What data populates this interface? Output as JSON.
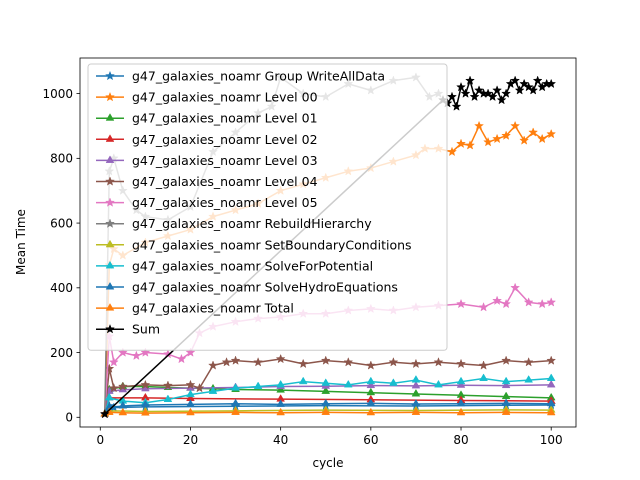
{
  "chart_data": {
    "type": "line",
    "title": "",
    "xlabel": "cycle",
    "ylabel": "Mean Time",
    "xlim": [
      -4.5,
      105.5
    ],
    "ylim": [
      -30,
      1110
    ],
    "xticks": [
      0,
      20,
      40,
      60,
      80,
      100
    ],
    "yticks": [
      0,
      200,
      400,
      600,
      800,
      1000
    ],
    "legend_position": "upper-left",
    "grid": false,
    "series": [
      {
        "name": "g47_galaxies_noamr Group WriteAllData",
        "color": "#1f77b4",
        "marker": "star",
        "x": [
          1,
          2,
          3,
          10,
          30,
          50,
          70,
          90,
          100
        ],
        "y": [
          10,
          35,
          30,
          32,
          34,
          36,
          35,
          37,
          38
        ]
      },
      {
        "name": "g47_galaxies_noamr Level 00",
        "color": "#ff7f0e",
        "marker": "star",
        "x": [
          1,
          2,
          3,
          5,
          10,
          15,
          20,
          25,
          30,
          35,
          40,
          45,
          50,
          55,
          60,
          65,
          70,
          72,
          75,
          78,
          80,
          82,
          84,
          86,
          88,
          90,
          92,
          94,
          96,
          98,
          100
        ],
        "y": [
          10,
          470,
          520,
          500,
          540,
          560,
          580,
          620,
          640,
          660,
          700,
          720,
          740,
          760,
          770,
          790,
          810,
          830,
          830,
          820,
          845,
          840,
          900,
          850,
          860,
          870,
          900,
          855,
          880,
          860,
          875
        ]
      },
      {
        "name": "g47_galaxies_noamr Level 01",
        "color": "#2ca02c",
        "marker": "triangle",
        "x": [
          1,
          2,
          5,
          10,
          15,
          20,
          25,
          30,
          40,
          50,
          60,
          70,
          80,
          90,
          100
        ],
        "y": [
          10,
          85,
          95,
          95,
          92,
          90,
          88,
          86,
          84,
          80,
          76,
          72,
          68,
          64,
          60
        ]
      },
      {
        "name": "g47_galaxies_noamr Level 02",
        "color": "#d62728",
        "marker": "triangle",
        "x": [
          1,
          2,
          10,
          20,
          40,
          60,
          80,
          100
        ],
        "y": [
          10,
          60,
          60,
          58,
          56,
          54,
          52,
          50
        ]
      },
      {
        "name": "g47_galaxies_noamr Level 03",
        "color": "#9467bd",
        "marker": "triangle",
        "x": [
          1,
          2,
          5,
          10,
          20,
          30,
          40,
          50,
          60,
          70,
          80,
          90,
          100
        ],
        "y": [
          10,
          80,
          85,
          88,
          90,
          92,
          95,
          96,
          98,
          97,
          99,
          98,
          100
        ]
      },
      {
        "name": "g47_galaxies_noamr Level 04",
        "color": "#8c564b",
        "marker": "star",
        "x": [
          1,
          2,
          3,
          5,
          10,
          15,
          20,
          22,
          25,
          28,
          30,
          35,
          40,
          45,
          50,
          55,
          60,
          65,
          70,
          75,
          80,
          85,
          90,
          95,
          100
        ],
        "y": [
          10,
          150,
          90,
          95,
          100,
          98,
          100,
          90,
          160,
          170,
          175,
          170,
          180,
          165,
          175,
          170,
          160,
          170,
          165,
          170,
          165,
          160,
          175,
          170,
          175
        ]
      },
      {
        "name": "g47_galaxies_noamr Level 05",
        "color": "#e377c2",
        "marker": "star",
        "x": [
          1,
          2,
          3,
          5,
          8,
          10,
          15,
          18,
          20,
          22,
          25,
          30,
          35,
          40,
          45,
          50,
          55,
          60,
          65,
          70,
          75,
          80,
          85,
          88,
          90,
          92,
          95,
          98,
          100
        ],
        "y": [
          10,
          250,
          170,
          200,
          190,
          200,
          195,
          180,
          200,
          260,
          280,
          295,
          305,
          310,
          320,
          320,
          330,
          335,
          330,
          340,
          345,
          350,
          340,
          360,
          350,
          400,
          355,
          350,
          355
        ]
      },
      {
        "name": "g47_galaxies_noamr RebuildHierarchy",
        "color": "#7f7f7f",
        "marker": "star",
        "x": [
          1,
          2,
          3,
          5,
          8,
          10,
          15,
          20,
          25,
          30,
          35,
          38,
          40,
          45,
          50,
          55,
          60,
          65,
          70,
          73,
          75
        ],
        "y": [
          10,
          760,
          800,
          700,
          640,
          620,
          610,
          650,
          820,
          880,
          940,
          960,
          1050,
          1000,
          990,
          1030,
          1010,
          1040,
          1050,
          990,
          1000
        ]
      },
      {
        "name": "g47_galaxies_noamr SetBoundaryConditions",
        "color": "#bcbd22",
        "marker": "triangle",
        "x": [
          1,
          2,
          10,
          30,
          50,
          70,
          90,
          100
        ],
        "y": [
          10,
          20,
          18,
          20,
          22,
          21,
          23,
          22
        ]
      },
      {
        "name": "g47_galaxies_noamr SolveForPotential",
        "color": "#17becf",
        "marker": "triangle",
        "x": [
          1,
          2,
          5,
          10,
          15,
          20,
          25,
          30,
          35,
          40,
          45,
          50,
          55,
          60,
          65,
          70,
          75,
          80,
          85,
          90,
          95,
          100
        ],
        "y": [
          10,
          60,
          50,
          45,
          55,
          70,
          80,
          90,
          95,
          100,
          110,
          105,
          100,
          110,
          105,
          115,
          100,
          110,
          120,
          110,
          115,
          120
        ]
      },
      {
        "name": "g47_galaxies_noamr SolveHydroEquations",
        "color": "#1f77b4",
        "marker": "triangle",
        "x": [
          1,
          2,
          5,
          10,
          20,
          30,
          40,
          50,
          60,
          70,
          80,
          90,
          100
        ],
        "y": [
          10,
          30,
          35,
          38,
          40,
          42,
          40,
          42,
          43,
          41,
          42,
          43,
          42
        ]
      },
      {
        "name": "g47_galaxies_noamr Total",
        "color": "#ff7f0e",
        "marker": "triangle",
        "x": [
          1,
          2,
          5,
          10,
          20,
          30,
          40,
          50,
          60,
          70,
          80,
          90,
          100
        ],
        "y": [
          10,
          15,
          14,
          13,
          14,
          15,
          14,
          15,
          14,
          15,
          14,
          15,
          14
        ]
      },
      {
        "name": "Sum",
        "color": "#000000",
        "marker": "star",
        "x": [
          1,
          76,
          77,
          78,
          79,
          80,
          81,
          82,
          83,
          84,
          85,
          86,
          87,
          88,
          89,
          90,
          91,
          92,
          93,
          94,
          95,
          96,
          97,
          98,
          99,
          100
        ],
        "y": [
          10,
          980,
          970,
          990,
          960,
          1020,
          1000,
          1040,
          990,
          1010,
          1000,
          1000,
          990,
          1010,
          980,
          1000,
          1030,
          1040,
          1010,
          1030,
          1020,
          1010,
          1040,
          1020,
          1030,
          1030
        ]
      }
    ]
  }
}
